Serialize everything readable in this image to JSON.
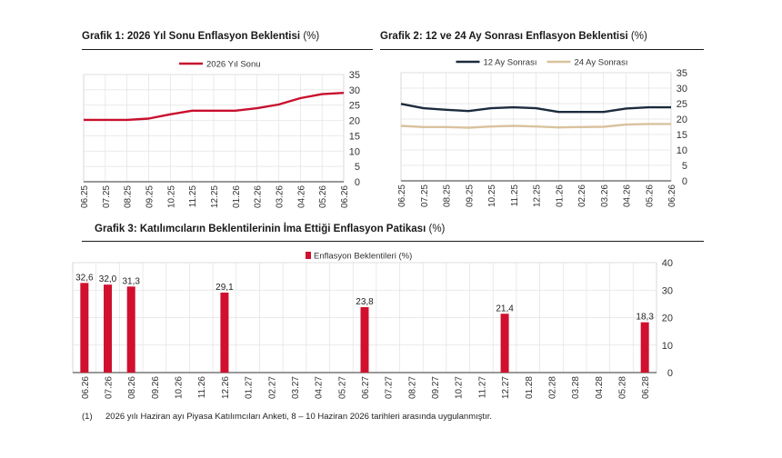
{
  "chart1": {
    "title": "Grafik 1: 2026 Yıl Sonu Enflasyon Beklentisi",
    "unit": "(%)",
    "chart_data": {
      "type": "line",
      "x": [
        "06.25",
        "07.25",
        "08.25",
        "09.25",
        "10.25",
        "11.25",
        "12.25",
        "01.26",
        "02.26",
        "03.26",
        "04.26",
        "05.26",
        "06.26"
      ],
      "series": [
        {
          "name": "2026 Yıl Sonu",
          "color": "#c8102e",
          "values": [
            20.2,
            20.2,
            20.2,
            20.6,
            22.0,
            23.2,
            23.2,
            23.2,
            24.0,
            25.2,
            27.3,
            28.6,
            29.0
          ]
        }
      ],
      "yticks": [
        0,
        5,
        10,
        15,
        20,
        25,
        30,
        35
      ],
      "ylim": [
        0,
        35
      ],
      "grid": true,
      "y_axis_side": "right",
      "legend": "top-center"
    }
  },
  "chart2": {
    "title": "Grafik 2: 12 ve 24 Ay Sonrası Enflasyon Beklentisi",
    "unit": "(%)",
    "chart_data": {
      "type": "line",
      "x": [
        "06.25",
        "07.25",
        "08.25",
        "09.25",
        "10.25",
        "11.25",
        "12.25",
        "01.26",
        "02.26",
        "03.26",
        "04.26",
        "05.26",
        "06.26"
      ],
      "series": [
        {
          "name": "12 Ay Sonrası",
          "color": "#1c2b3d",
          "values": [
            24.9,
            23.5,
            23.0,
            22.6,
            23.5,
            23.8,
            23.5,
            22.3,
            22.3,
            22.3,
            23.4,
            23.8,
            23.8
          ]
        },
        {
          "name": "24 Ay Sonrası",
          "color": "#d9c29f",
          "values": [
            17.8,
            17.4,
            17.4,
            17.2,
            17.6,
            17.8,
            17.6,
            17.3,
            17.4,
            17.5,
            18.2,
            18.4,
            18.4
          ]
        }
      ],
      "yticks": [
        0,
        5,
        10,
        15,
        20,
        25,
        30,
        35
      ],
      "ylim": [
        0,
        35
      ],
      "grid": true,
      "y_axis_side": "right",
      "legend": "top-center"
    }
  },
  "chart3": {
    "title": "Grafik 3: Katılımcıların Beklentilerinin İma Ettiği Enflasyon Patikası",
    "unit": "(%)",
    "chart_data": {
      "type": "bar",
      "categories": [
        "06.26",
        "07.26",
        "08.26",
        "09.26",
        "10.26",
        "11.26",
        "12.26",
        "01.27",
        "02.27",
        "03.27",
        "04.27",
        "05.27",
        "06.27",
        "07.27",
        "08.27",
        "09.27",
        "10.27",
        "11.27",
        "12.27",
        "01.28",
        "02.28",
        "03.28",
        "04.28",
        "05.28",
        "06.28"
      ],
      "series": [
        {
          "name": "Enflasyon Beklentileri (%)",
          "color": "#d0102e",
          "values": [
            32.6,
            32.0,
            31.3,
            null,
            null,
            null,
            29.1,
            null,
            null,
            null,
            null,
            null,
            23.8,
            null,
            null,
            null,
            null,
            null,
            21.4,
            null,
            null,
            null,
            null,
            null,
            18.3
          ]
        }
      ],
      "data_labels": [
        "32,6",
        "32,0",
        "31,3",
        "",
        "",
        "",
        "29,1",
        "",
        "",
        "",
        "",
        "",
        "23,8",
        "",
        "",
        "",
        "",
        "",
        "21,4",
        "",
        "",
        "",
        "",
        "",
        "18,3"
      ],
      "yticks": [
        0,
        10,
        20,
        30,
        40
      ],
      "ylim": [
        0,
        40
      ],
      "grid": true,
      "y_axis_side": "right",
      "legend": "top-center"
    }
  },
  "footnote": {
    "number": "(1)",
    "text": "2026 yılı Haziran ayı Piyasa Katılımcıları Anketi, 8 – 10 Haziran 2026 tarihleri arasında uygulanmıştır."
  }
}
